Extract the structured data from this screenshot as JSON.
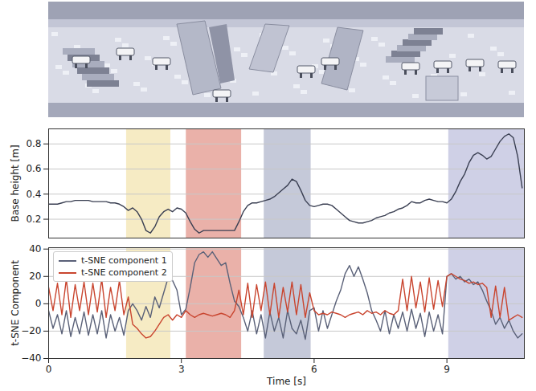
{
  "chart_data": [
    {
      "type": "line",
      "ylabel": "Base height [m]",
      "x": [
        0,
        0.1,
        0.2,
        0.3,
        0.4,
        0.5,
        0.6,
        0.7,
        0.8,
        0.9,
        1,
        1.1,
        1.2,
        1.3,
        1.4,
        1.5,
        1.6,
        1.7,
        1.8,
        1.9,
        2,
        2.1,
        2.2,
        2.3,
        2.4,
        2.5,
        2.6,
        2.7,
        2.8,
        2.9,
        3,
        3.1,
        3.2,
        3.3,
        3.4,
        3.5,
        3.6,
        3.7,
        3.8,
        3.9,
        4,
        4.1,
        4.2,
        4.3,
        4.4,
        4.5,
        4.6,
        4.7,
        4.8,
        4.9,
        5,
        5.1,
        5.2,
        5.3,
        5.4,
        5.5,
        5.6,
        5.7,
        5.8,
        5.9,
        6,
        6.1,
        6.2,
        6.3,
        6.4,
        6.5,
        6.6,
        6.7,
        6.8,
        6.9,
        7,
        7.1,
        7.2,
        7.3,
        7.4,
        7.5,
        7.6,
        7.7,
        7.8,
        7.9,
        8,
        8.1,
        8.2,
        8.3,
        8.4,
        8.5,
        8.6,
        8.7,
        8.8,
        8.9,
        9,
        9.1,
        9.2,
        9.3,
        9.4,
        9.5,
        9.6,
        9.7,
        9.8,
        9.9,
        10,
        10.1,
        10.2,
        10.3,
        10.4,
        10.5,
        10.6,
        10.7
      ],
      "values": [
        0.32,
        0.32,
        0.32,
        0.33,
        0.34,
        0.34,
        0.35,
        0.35,
        0.35,
        0.35,
        0.34,
        0.34,
        0.34,
        0.34,
        0.33,
        0.33,
        0.32,
        0.3,
        0.27,
        0.29,
        0.26,
        0.2,
        0.11,
        0.09,
        0.14,
        0.22,
        0.26,
        0.28,
        0.26,
        0.29,
        0.28,
        0.25,
        0.18,
        0.12,
        0.09,
        0.11,
        0.11,
        0.11,
        0.11,
        0.11,
        0.11,
        0.11,
        0.11,
        0.18,
        0.26,
        0.31,
        0.33,
        0.33,
        0.34,
        0.35,
        0.36,
        0.38,
        0.41,
        0.44,
        0.47,
        0.52,
        0.5,
        0.43,
        0.35,
        0.31,
        0.3,
        0.31,
        0.32,
        0.32,
        0.31,
        0.28,
        0.25,
        0.22,
        0.19,
        0.18,
        0.17,
        0.17,
        0.18,
        0.19,
        0.21,
        0.22,
        0.23,
        0.25,
        0.26,
        0.28,
        0.29,
        0.31,
        0.34,
        0.33,
        0.33,
        0.35,
        0.36,
        0.35,
        0.34,
        0.34,
        0.33,
        0.36,
        0.42,
        0.5,
        0.56,
        0.65,
        0.71,
        0.73,
        0.71,
        0.68,
        0.7,
        0.76,
        0.82,
        0.86,
        0.88,
        0.85,
        0.7,
        0.45
      ],
      "color": "#3a3f52",
      "xlim": [
        0,
        10.75
      ],
      "ylim": [
        0.05,
        0.92
      ],
      "yticks": [
        0.2,
        0.4,
        0.6,
        0.8
      ],
      "grid": true,
      "tick_labels": "y",
      "shaded_regions": [
        {
          "start": 1.76,
          "end": 2.76,
          "color": "#f6ebc4"
        },
        {
          "start": 3.11,
          "end": 4.36,
          "color": "#eab1a9"
        },
        {
          "start": 4.87,
          "end": 5.93,
          "color": "#c5c9d9"
        },
        {
          "start": 9.04,
          "end": 10.75,
          "color": "#cfd0e6"
        }
      ]
    },
    {
      "type": "line",
      "xlabel": "Time [s]",
      "ylabel": "t-SNE Component",
      "x": [
        0,
        0.1,
        0.2,
        0.3,
        0.4,
        0.5,
        0.6,
        0.7,
        0.8,
        0.9,
        1,
        1.1,
        1.2,
        1.3,
        1.4,
        1.5,
        1.6,
        1.7,
        1.8,
        1.9,
        2,
        2.1,
        2.2,
        2.3,
        2.4,
        2.5,
        2.6,
        2.7,
        2.8,
        2.9,
        3,
        3.1,
        3.2,
        3.3,
        3.4,
        3.5,
        3.6,
        3.7,
        3.8,
        3.9,
        4,
        4.1,
        4.2,
        4.3,
        4.4,
        4.5,
        4.6,
        4.7,
        4.8,
        4.9,
        5,
        5.1,
        5.2,
        5.3,
        5.4,
        5.5,
        5.6,
        5.7,
        5.8,
        5.9,
        6,
        6.1,
        6.2,
        6.3,
        6.4,
        6.5,
        6.6,
        6.7,
        6.8,
        6.9,
        7,
        7.1,
        7.2,
        7.3,
        7.4,
        7.5,
        7.6,
        7.7,
        7.8,
        7.9,
        8,
        8.1,
        8.2,
        8.3,
        8.4,
        8.5,
        8.6,
        8.7,
        8.8,
        8.9,
        9,
        9.1,
        9.2,
        9.3,
        9.4,
        9.5,
        9.6,
        9.7,
        9.8,
        9.9,
        10,
        10.1,
        10.2,
        10.3,
        10.4,
        10.5,
        10.6,
        10.7
      ],
      "series": [
        {
          "name": "t-SNE component 1",
          "color": "#5a6178",
          "values": [
            -5,
            -18,
            -8,
            -22,
            -5,
            -24,
            -10,
            -22,
            -6,
            -23,
            -8,
            -22,
            -5,
            -25,
            -8,
            -20,
            -10,
            -23,
            -5,
            0,
            -5,
            -12,
            -2,
            -10,
            5,
            -3,
            8,
            19,
            17,
            10,
            -8,
            -4,
            12,
            30,
            36,
            38,
            34,
            38,
            33,
            28,
            30,
            15,
            2,
            -2,
            -10,
            -20,
            -5,
            -22,
            -8,
            -25,
            -6,
            -20,
            -10,
            -25,
            -5,
            -18,
            -22,
            -12,
            -26,
            -5,
            -3,
            -20,
            -5,
            -18,
            -8,
            2,
            10,
            22,
            28,
            20,
            27,
            18,
            8,
            -5,
            -12,
            -20,
            -5,
            -22,
            -8,
            -18,
            -6,
            -20,
            -4,
            -18,
            -7,
            -24,
            -6,
            -20,
            -8,
            -22,
            20,
            22,
            18,
            20,
            16,
            18,
            14,
            16,
            10,
            2,
            -5,
            -15,
            -10,
            -18,
            -12,
            -20,
            -25,
            -22
          ]
        },
        {
          "name": "t-SNE component 2",
          "color": "#c9452f",
          "values": [
            12,
            -5,
            15,
            -8,
            18,
            -10,
            14,
            -5,
            16,
            -8,
            15,
            -6,
            18,
            -10,
            12,
            -5,
            17,
            -8,
            5,
            -15,
            -18,
            -22,
            -25,
            -24,
            -20,
            -15,
            -10,
            -8,
            -12,
            -8,
            -10,
            -5,
            -8,
            -10,
            -8,
            -7,
            -8,
            -9,
            -8,
            -7,
            -8,
            -10,
            -5,
            10,
            -8,
            15,
            -10,
            14,
            -5,
            16,
            -8,
            15,
            -10,
            12,
            -6,
            16,
            -8,
            14,
            -10,
            8,
            -5,
            -8,
            -7,
            -8,
            -6,
            -7,
            -8,
            -10,
            -8,
            -7,
            -6,
            -8,
            -5,
            -7,
            -6,
            -8,
            -5,
            -7,
            -8,
            -5,
            18,
            -5,
            20,
            -3,
            16,
            -6,
            19,
            -4,
            17,
            -2,
            20,
            22,
            20,
            18,
            17,
            15,
            16,
            14,
            15,
            12,
            -10,
            13,
            -10,
            12,
            -12,
            -10,
            -8,
            -10
          ]
        }
      ],
      "xlim": [
        0,
        10.75
      ],
      "xticks": [
        0,
        3,
        6,
        9
      ],
      "ylim": [
        -40,
        41
      ],
      "yticks": [
        -40,
        -20,
        0,
        20,
        40
      ],
      "grid": true,
      "legend": "upper left",
      "shaded_regions": [
        {
          "start": 1.76,
          "end": 2.76,
          "color": "#f6ebc4"
        },
        {
          "start": 3.11,
          "end": 4.36,
          "color": "#eab1a9"
        },
        {
          "start": 4.87,
          "end": 5.93,
          "color": "#c5c9d9"
        },
        {
          "start": 9.04,
          "end": 10.75,
          "color": "#cfd0e6"
        }
      ]
    }
  ]
}
